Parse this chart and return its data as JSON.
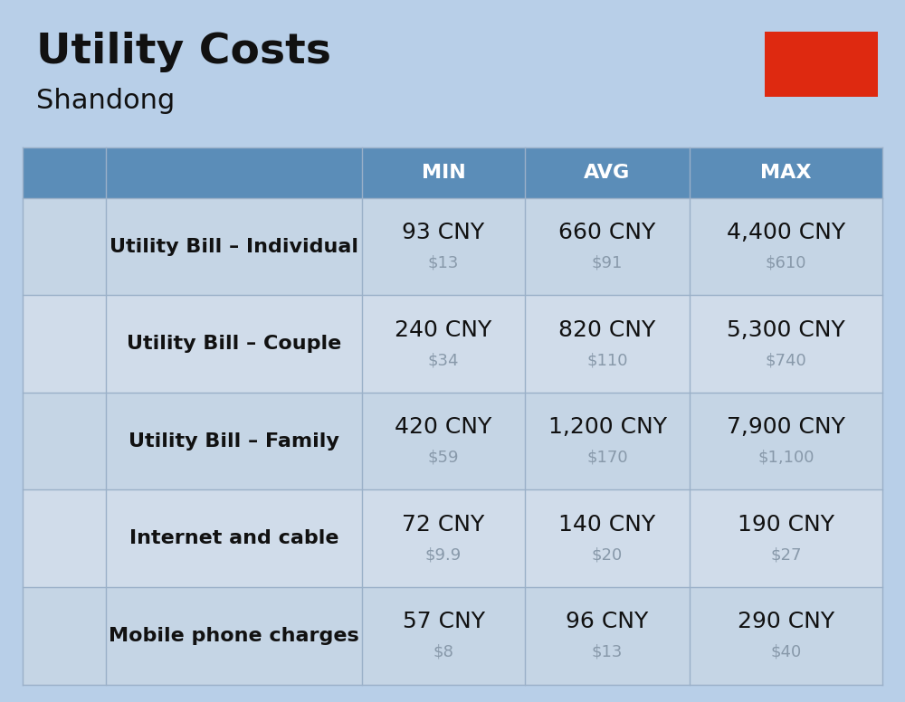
{
  "title": "Utility Costs",
  "subtitle": "Shandong",
  "background_color": "#b8cfe8",
  "header_color": "#5b8db8",
  "header_text_color": "#ffffff",
  "row_color_light": "#c5d5e5",
  "row_color_dark": "#d0dcea",
  "col_headers": [
    "MIN",
    "AVG",
    "MAX"
  ],
  "rows": [
    {
      "label": "Utility Bill – Individual",
      "icon": "utility",
      "min_cny": "93 CNY",
      "min_usd": "$13",
      "avg_cny": "660 CNY",
      "avg_usd": "$91",
      "max_cny": "4,400 CNY",
      "max_usd": "$610"
    },
    {
      "label": "Utility Bill – Couple",
      "icon": "utility",
      "min_cny": "240 CNY",
      "min_usd": "$34",
      "avg_cny": "820 CNY",
      "avg_usd": "$110",
      "max_cny": "5,300 CNY",
      "max_usd": "$740"
    },
    {
      "label": "Utility Bill – Family",
      "icon": "utility",
      "min_cny": "420 CNY",
      "min_usd": "$59",
      "avg_cny": "1,200 CNY",
      "avg_usd": "$170",
      "max_cny": "7,900 CNY",
      "max_usd": "$1,100"
    },
    {
      "label": "Internet and cable",
      "icon": "internet",
      "min_cny": "72 CNY",
      "min_usd": "$9.9",
      "avg_cny": "140 CNY",
      "avg_usd": "$20",
      "max_cny": "190 CNY",
      "max_usd": "$27"
    },
    {
      "label": "Mobile phone charges",
      "icon": "mobile",
      "min_cny": "57 CNY",
      "min_usd": "$8",
      "avg_cny": "96 CNY",
      "avg_usd": "$13",
      "max_cny": "290 CNY",
      "max_usd": "$40"
    }
  ],
  "cny_fontsize": 18,
  "usd_fontsize": 13,
  "label_fontsize": 16,
  "header_fontsize": 16,
  "title_fontsize": 34,
  "subtitle_fontsize": 22,
  "usd_color": "#8899aa",
  "text_color": "#111111",
  "label_color": "#111111",
  "cell_line_color": "#9ab0c8",
  "flag_red": "#DE2910",
  "flag_yellow": "#FFDE00"
}
